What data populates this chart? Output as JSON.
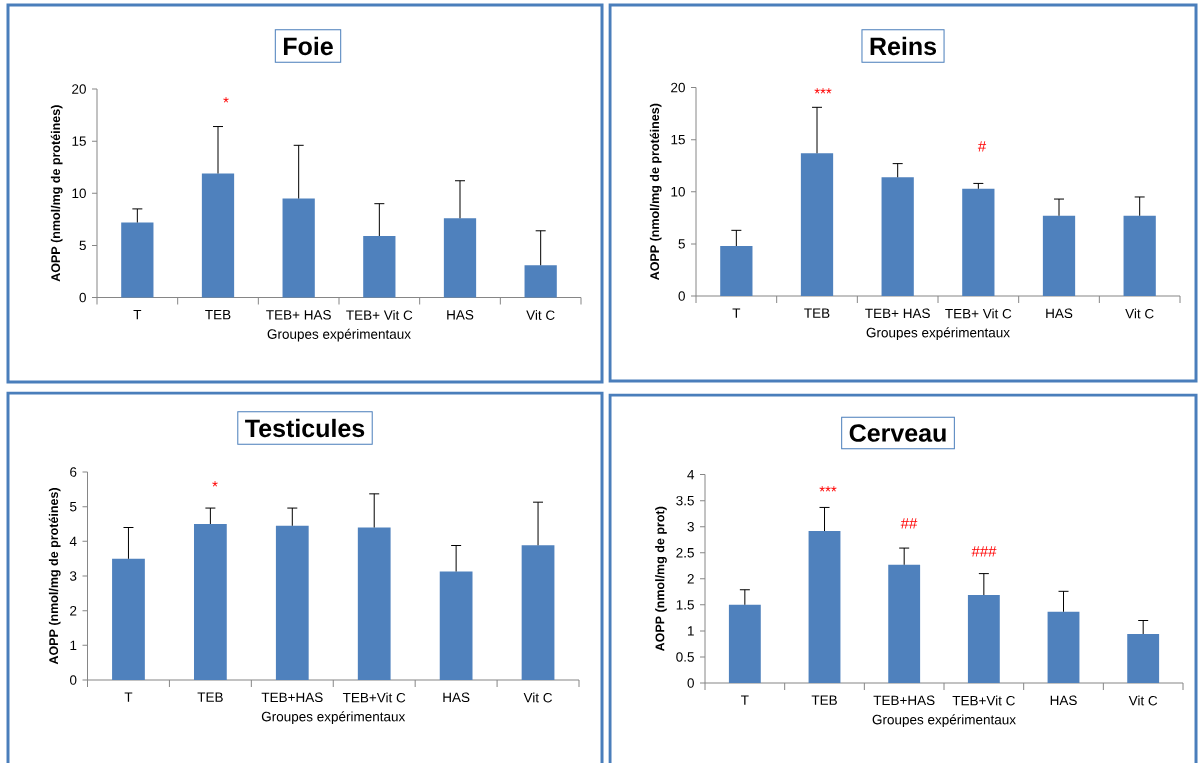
{
  "chart_data": [
    {
      "type": "bar",
      "title": "Foie",
      "xlabel": "Groupes expérimentaux",
      "ylabel": "AOPP (nmol/mg de protéines)",
      "categories": [
        "T",
        "TEB",
        "TEB+ HAS",
        "TEB+ Vit C",
        "HAS",
        "Vit C"
      ],
      "values": [
        7.2,
        11.9,
        9.5,
        5.9,
        7.6,
        3.1
      ],
      "errors": [
        [
          7.2,
          8.5
        ],
        [
          11.9,
          16.4
        ],
        [
          9.5,
          14.6
        ],
        [
          5.9,
          9.0
        ],
        [
          7.6,
          11.2
        ],
        [
          3.1,
          6.4
        ]
      ],
      "color": "#4f81bd",
      "ylim": [
        0,
        20
      ],
      "yticks": [
        0,
        5,
        10,
        15,
        20
      ],
      "annotations": [
        "*"
      ]
    },
    {
      "type": "bar",
      "title": "Reins",
      "xlabel": "Groupes expérimentaux",
      "ylabel": "AOPP (nmol/mg de protéines)",
      "categories": [
        "T",
        "TEB",
        "TEB+ HAS",
        "TEB+ Vit C",
        "HAS",
        "Vit C"
      ],
      "values": [
        4.8,
        13.7,
        11.4,
        10.3,
        7.7,
        7.7
      ],
      "errors": [
        [
          4.8,
          6.3
        ],
        [
          13.7,
          18.1
        ],
        [
          11.4,
          12.7
        ],
        [
          10.3,
          10.8
        ],
        [
          7.7,
          9.3
        ],
        [
          7.7,
          9.5
        ]
      ],
      "color": "#4f81bd",
      "ylim": [
        0,
        20
      ],
      "yticks": [
        0,
        5,
        10,
        15,
        20
      ],
      "annotations": [
        "***",
        "#"
      ]
    },
    {
      "type": "bar",
      "title": "Testicules",
      "xlabel": "Groupes expérimentaux",
      "ylabel": "AOPP (nmol/mg de protéines)",
      "categories": [
        "T",
        "TEB",
        "TEB+HAS",
        "TEB+Vit C",
        "HAS",
        "Vit C"
      ],
      "values": [
        3.5,
        4.5,
        4.45,
        4.4,
        3.13,
        3.89
      ],
      "errors": [
        [
          3.5,
          4.4
        ],
        [
          4.5,
          4.96
        ],
        [
          4.45,
          4.96
        ],
        [
          4.4,
          5.37
        ],
        [
          3.13,
          3.88
        ],
        [
          3.89,
          5.13
        ]
      ],
      "color": "#4f81bd",
      "ylim": [
        0,
        6
      ],
      "yticks": [
        0,
        1,
        2,
        3,
        4,
        5,
        6
      ],
      "annotations": [
        "*"
      ]
    },
    {
      "type": "bar",
      "title": "Cerveau",
      "xlabel": "Groupes expérimentaux",
      "ylabel": "AOPP (nmol/mg de prot)",
      "categories": [
        "T",
        "TEB",
        "TEB+HAS",
        "TEB+Vit C",
        "HAS",
        "Vit C"
      ],
      "values": [
        1.5,
        2.92,
        2.27,
        1.69,
        1.37,
        0.94
      ],
      "errors": [
        [
          1.5,
          1.79
        ],
        [
          2.92,
          3.37
        ],
        [
          2.27,
          2.59
        ],
        [
          1.69,
          2.1
        ],
        [
          1.37,
          1.76
        ],
        [
          0.94,
          1.2
        ]
      ],
      "color": "#4f81bd",
      "ylim": [
        0,
        4
      ],
      "yticks": [
        0,
        0.5,
        1,
        1.5,
        2,
        2.5,
        3,
        3.5,
        4
      ],
      "annotations": [
        "***",
        "##",
        "###"
      ]
    }
  ]
}
